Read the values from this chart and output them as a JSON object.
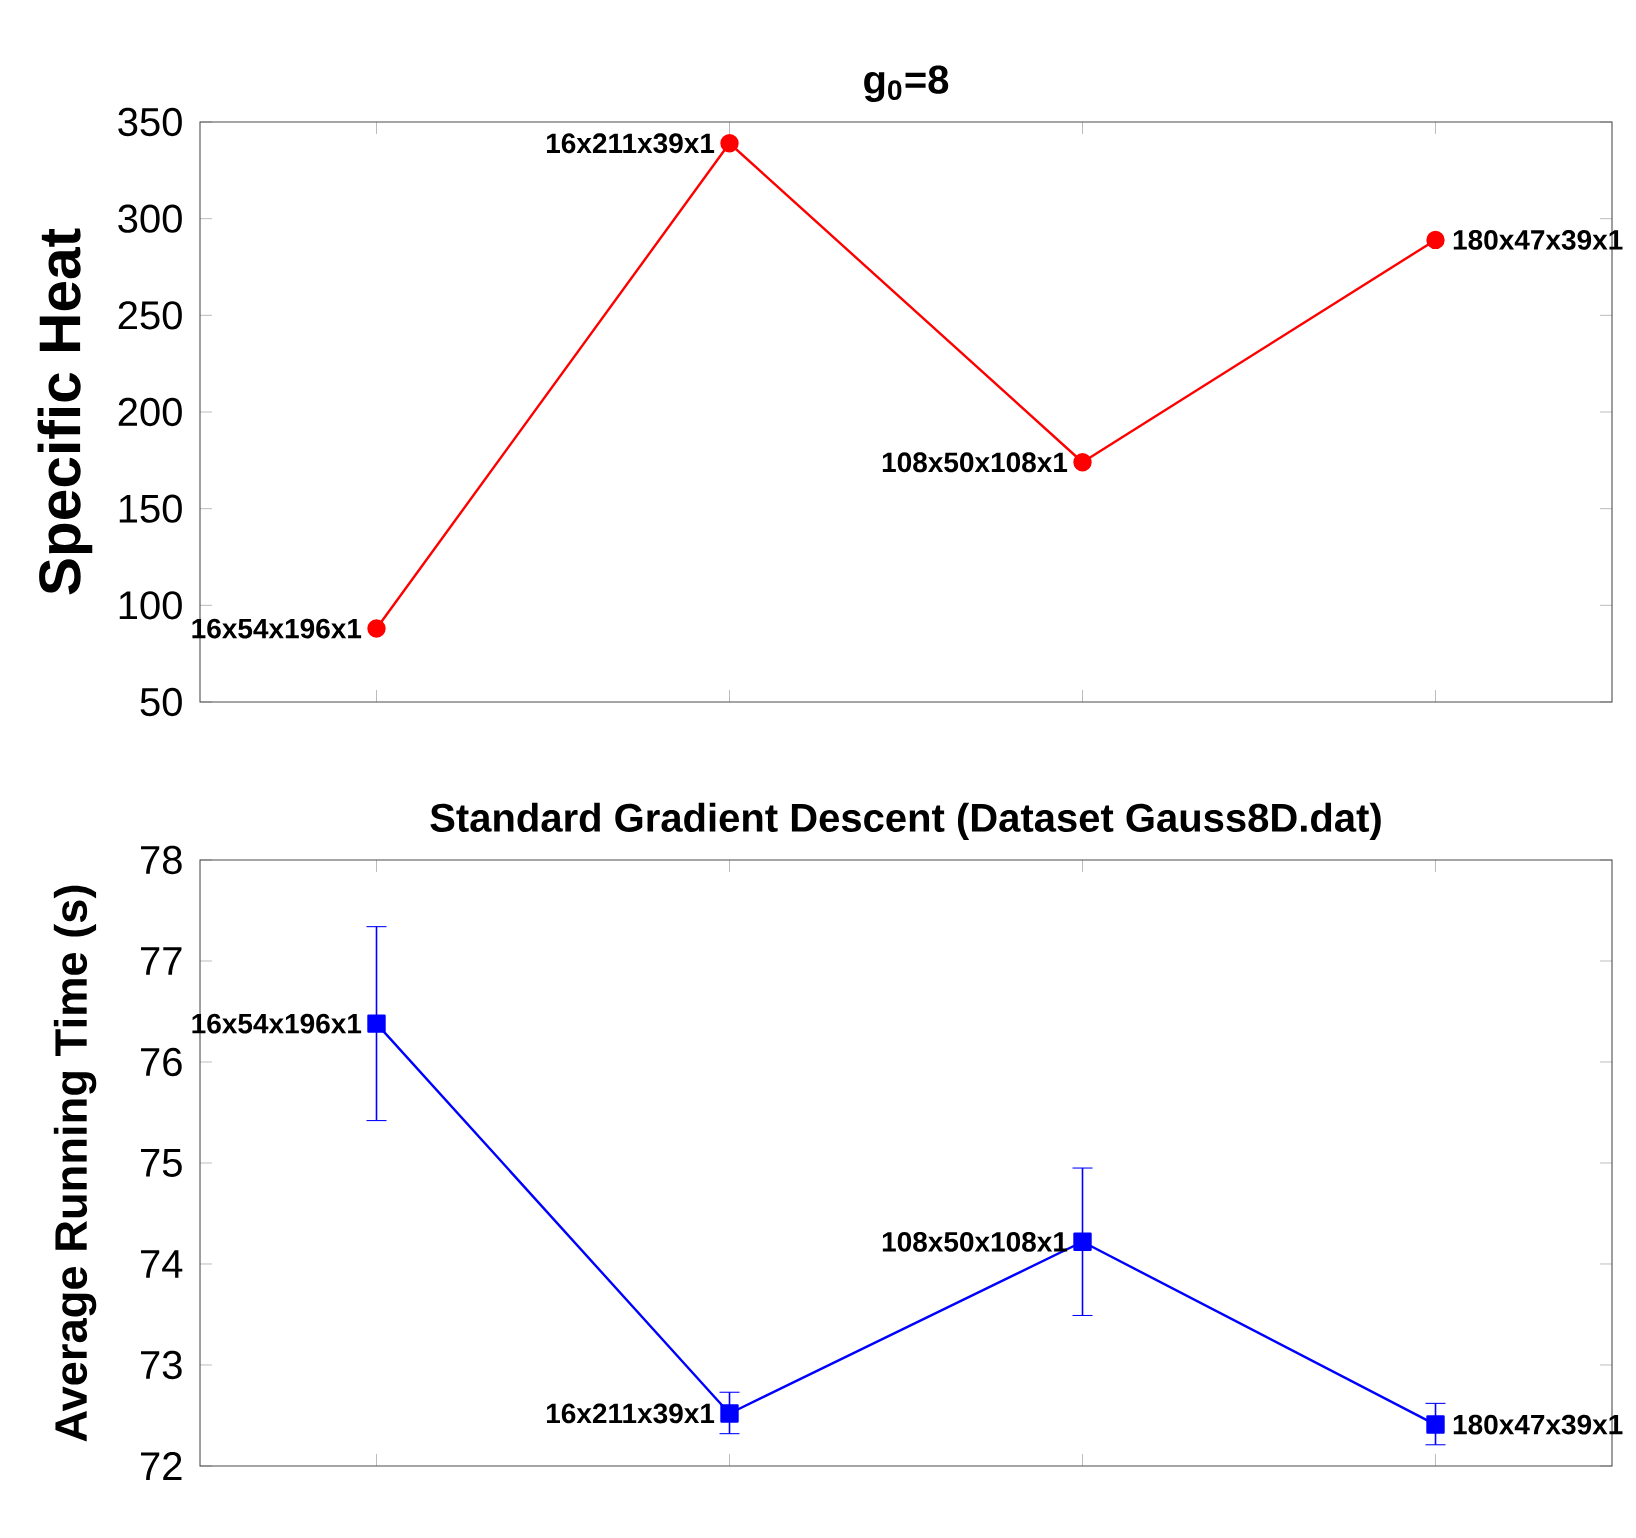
{
  "chart_data": [
    {
      "type": "line",
      "title": "g$_{0}$=8",
      "ylabel": "Specific Heat",
      "categories": [
        null,
        null,
        null,
        null
      ],
      "values": [
        88,
        339,
        174,
        289
      ],
      "color": "#ff0000",
      "marker": "circle",
      "annotations": [
        "16x54x196x1",
        "16x211x39x1",
        "108x50x108x1",
        "180x47x39x1"
      ],
      "ylim": [
        50,
        350
      ],
      "yticks": [
        50,
        100,
        150,
        200,
        250,
        300,
        350
      ],
      "tick_labels": "y"
    },
    {
      "type": "line",
      "title": "Standard Gradient Descent (Dataset Gauss8D.dat)",
      "ylabel": "Average Running Time (s)",
      "categories": [
        null,
        null,
        null,
        null
      ],
      "values": [
        76.38,
        72.52,
        74.22,
        72.41
      ],
      "color": "#0000ff",
      "marker": "square",
      "errors": [
        [
          75.42,
          77.34
        ],
        [
          72.32,
          72.73
        ],
        [
          73.49,
          74.95
        ],
        [
          72.21,
          72.62
        ]
      ],
      "annotations": [
        "16x54x196x1",
        "16x211x39x1",
        "108x50x108x1",
        "180x47x39x1"
      ],
      "ylim": [
        72,
        78
      ],
      "yticks": [
        72,
        73,
        74,
        75,
        76,
        77,
        78
      ],
      "tick_labels": "y"
    }
  ]
}
